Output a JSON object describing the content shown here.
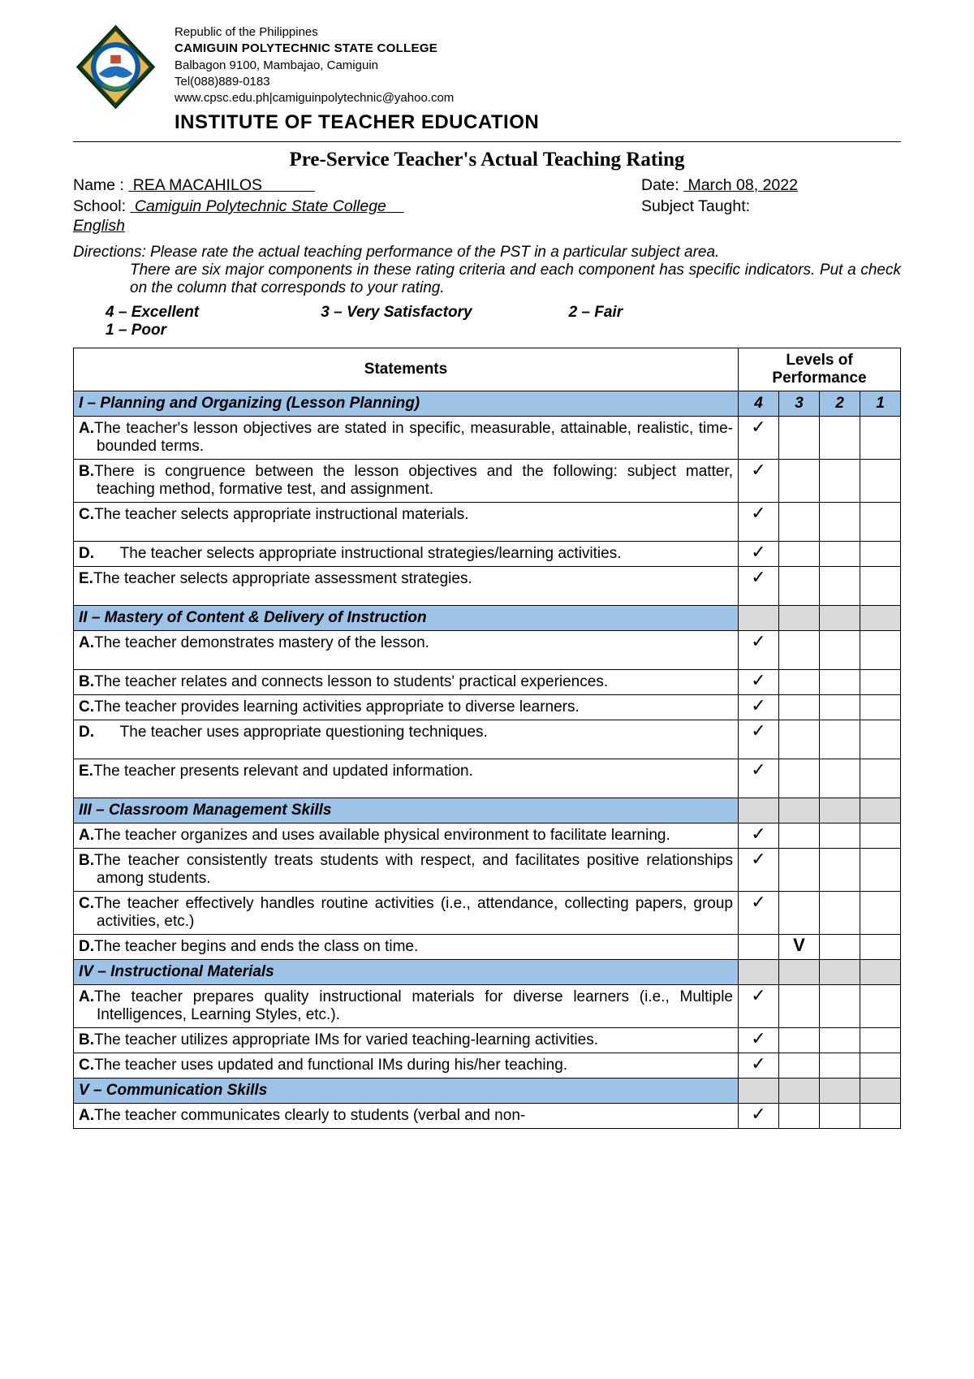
{
  "header": {
    "republic": "Republic of the Philippines",
    "college": "CAMIGUIN POLYTECHNIC STATE COLLEGE",
    "address": "Balbagon 9100, Mambajao, Camiguin",
    "tel": "Tel(088)889-0183",
    "web": "www.cpsc.edu.ph|camiguinpolytechnic@yahoo.com",
    "institute": "INSTITUTE OF TEACHER EDUCATION"
  },
  "title": "Pre-Service Teacher's Actual Teaching Rating",
  "meta": {
    "name_label": "Name :",
    "name_value": "REA MACAHILOS",
    "date_label": "Date:",
    "date_value": "March 08, 2022",
    "school_label": "School:",
    "school_value": "Camiguin Polytechnic State College",
    "subject_label": "Subject Taught:",
    "subject_value": "English"
  },
  "directions_label": "Directions:",
  "directions_text": "Please rate the actual teaching performance of the PST in a particular subject area. There are six major components in these rating criteria and each component has specific indicators. Put a check on the column that corresponds to your rating.",
  "scale": {
    "s4": "4 – Excellent",
    "s3": "3 – Very Satisfactory",
    "s2": "2 – Fair",
    "s1": "1 – Poor"
  },
  "table": {
    "statements_header": "Statements",
    "levels_header": "Levels of Performance",
    "cols": {
      "c4": "4",
      "c3": "3",
      "c2": "2",
      "c1": "1"
    },
    "sections": [
      {
        "title": "I – Planning and Organizing (Lesson Planning)",
        "gray_levels": false,
        "rows": [
          {
            "letter": "A.",
            "text": "The teacher's lesson objectives are stated in specific, measurable, attainable, realistic, time-bounded terms.",
            "justify": true,
            "rating": 4
          },
          {
            "letter": "B.",
            "text": "There is congruence between the lesson objectives and the following: subject matter, teaching method, formative test, and assignment.",
            "justify": true,
            "rating": 4
          },
          {
            "letter": "C.",
            "text": "The teacher selects appropriate instructional materials.",
            "rating": 4,
            "tall": true
          },
          {
            "letter": "D.",
            "text": "     The teacher selects appropriate instructional strategies/learning activities.",
            "rating": 4,
            "indent": true
          },
          {
            "letter": "E.",
            "text": "The teacher selects appropriate assessment strategies.",
            "rating": 4,
            "tall": true
          }
        ]
      },
      {
        "title": "II – Mastery of Content  & Delivery of Instruction",
        "gray_levels": true,
        "rows": [
          {
            "letter": "A.",
            "text": "The teacher demonstrates mastery of the lesson.",
            "rating": 4,
            "tall": true
          },
          {
            "letter": "B.",
            "text": "The teacher relates and connects lesson to students' practical experiences.",
            "rating": 4
          },
          {
            "letter": "C.",
            "text": "The teacher provides learning activities appropriate to diverse learners.",
            "rating": 4
          },
          {
            "letter": "D.",
            "text": "     The teacher uses appropriate questioning techniques.",
            "rating": 4,
            "indent": true,
            "tall": true
          },
          {
            "letter": "E.",
            "text": "The teacher presents relevant and updated information.",
            "rating": 4,
            "tall": true
          }
        ]
      },
      {
        "title": "III – Classroom Management Skills",
        "gray_levels": true,
        "rows": [
          {
            "letter": "A.",
            "text": "The teacher organizes and uses available physical environment to facilitate learning.",
            "justify": true,
            "rating": 4
          },
          {
            "letter": "B.",
            "text": "The teacher consistently treats students with respect, and facilitates positive relationships among students.",
            "justify": true,
            "rating": 4
          },
          {
            "letter": "C.",
            "text": "The teacher effectively handles routine activities (i.e., attendance, collecting papers, group activities, etc.)",
            "justify": true,
            "rating": 4
          },
          {
            "letter": "D.",
            "text": "The teacher begins and ends the class on time.",
            "rating": 3,
            "mark": "V"
          }
        ]
      },
      {
        "title": "IV – Instructional Materials",
        "gray_levels": true,
        "rows": [
          {
            "letter": "A.",
            "text": " The teacher prepares quality instructional materials for diverse learners (i.e., Multiple Intelligences, Learning Styles, etc.).",
            "justify": true,
            "rating": 4
          },
          {
            "letter": "B.",
            "text": " The teacher utilizes appropriate IMs for varied teaching-learning activities.",
            "justify": true,
            "rating": 4
          },
          {
            "letter": "C.",
            "text": " The teacher uses updated and functional IMs during his/her teaching.",
            "justify": true,
            "rating": 4
          }
        ]
      },
      {
        "title": "V – Communication Skills",
        "gray_levels": true,
        "rows": [
          {
            "letter": "A.",
            "text": " The teacher communicates clearly to students (verbal and non-",
            "rating": 4
          }
        ]
      }
    ]
  },
  "colors": {
    "section_bg": "#9dc3e6",
    "gray_cell": "#d9d9d9"
  },
  "checkmark": "✓"
}
